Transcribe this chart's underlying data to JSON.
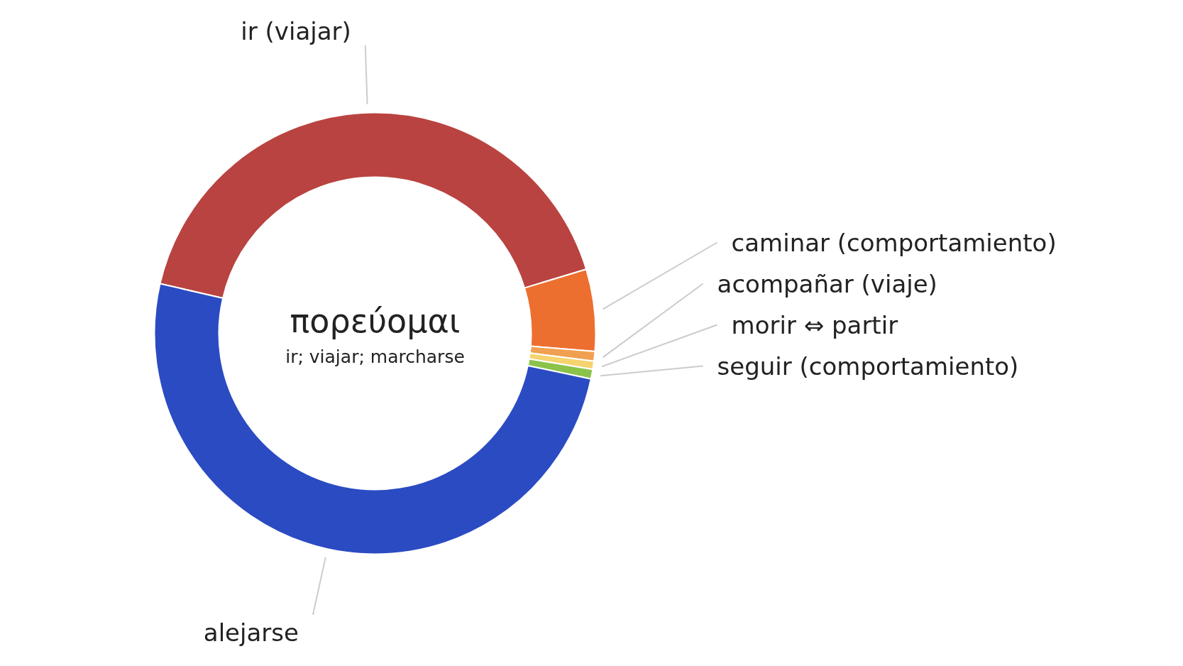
{
  "chart_data": {
    "type": "donut",
    "title": "πορεύομαι",
    "subtitle": "ir; viajar; marcharse",
    "categories": [
      "ir (viajar)",
      "caminar (comportamiento)",
      "acompañar (viaje)",
      "morir ⇔ partir",
      "seguir (comportamiento)",
      "alejarse"
    ],
    "values": [
      41.7,
      6.0,
      0.7,
      0.6,
      0.7,
      50.3
    ],
    "colors": [
      "#b94340",
      "#ed6f2f",
      "#f0a050",
      "#f5d36e",
      "#8bc34a",
      "#2b4bc2"
    ]
  }
}
